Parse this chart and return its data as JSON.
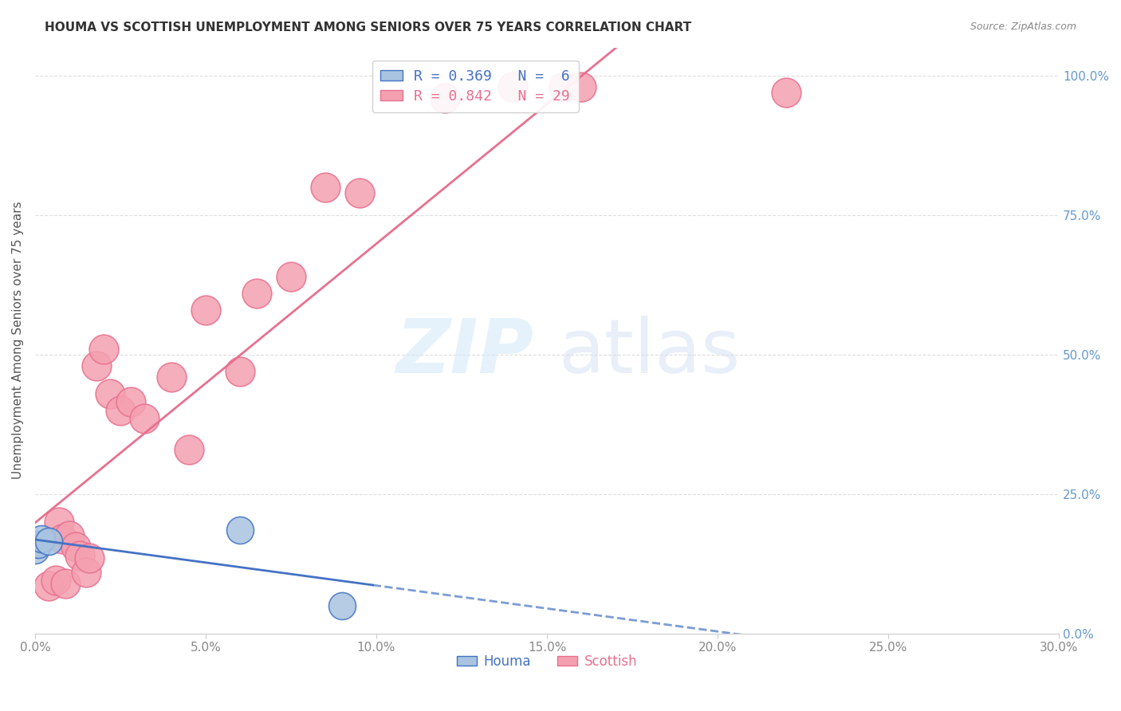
{
  "title": "HOUMA VS SCOTTISH UNEMPLOYMENT AMONG SENIORS OVER 75 YEARS CORRELATION CHART",
  "source": "Source: ZipAtlas.com",
  "ylabel": "Unemployment Among Seniors over 75 years",
  "houma_R": 0.369,
  "houma_N": 6,
  "scottish_R": 0.842,
  "scottish_N": 29,
  "houma_color": "#a8c4e0",
  "scottish_color": "#f4a0b0",
  "houma_line_color": "#4472c4",
  "scottish_line_color": "#e87090",
  "houma_points_x": [
    0.0,
    0.001,
    0.002,
    0.004,
    0.06,
    0.09
  ],
  "houma_points_y": [
    0.15,
    0.16,
    0.17,
    0.165,
    0.185,
    0.05
  ],
  "scottish_points_x": [
    0.004,
    0.006,
    0.007,
    0.008,
    0.009,
    0.01,
    0.012,
    0.013,
    0.015,
    0.016,
    0.018,
    0.02,
    0.022,
    0.025,
    0.028,
    0.032,
    0.04,
    0.045,
    0.05,
    0.06,
    0.065,
    0.075,
    0.085,
    0.095,
    0.12,
    0.14,
    0.155,
    0.16,
    0.22
  ],
  "scottish_points_y": [
    0.085,
    0.095,
    0.2,
    0.17,
    0.09,
    0.175,
    0.155,
    0.14,
    0.11,
    0.135,
    0.48,
    0.51,
    0.43,
    0.4,
    0.415,
    0.385,
    0.46,
    0.33,
    0.58,
    0.47,
    0.61,
    0.64,
    0.8,
    0.79,
    0.96,
    0.98,
    0.98,
    0.98,
    0.97
  ],
  "xmin": 0.0,
  "xmax": 0.3,
  "ymin": 0.0,
  "ymax": 1.05
}
